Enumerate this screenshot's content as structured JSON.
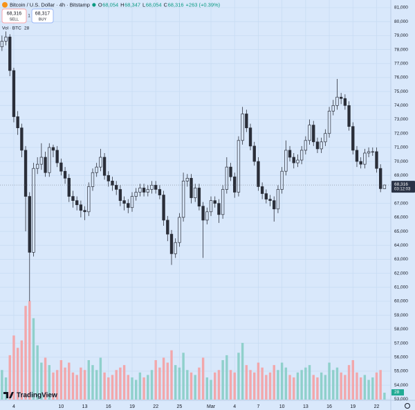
{
  "header": {
    "symbol": "Bitcoin / U.S. Dollar · 4h · Bitstamp",
    "ohlc": [
      {
        "key": "O",
        "value": "68,054"
      },
      {
        "key": "H",
        "value": "68,347"
      },
      {
        "key": "L",
        "value": "68,054"
      },
      {
        "key": "C",
        "value": "68,316"
      }
    ],
    "change": "+263 (+0.39%)",
    "sell_price": "68,316",
    "sell_label": "SELL",
    "spread": "1",
    "buy_price": "68,317",
    "buy_label": "BUY",
    "volume_label": "Vol · BTC",
    "logo": "TradingView"
  },
  "chart_data": {
    "type": "candlestick",
    "background": "#d9e8fb",
    "grid": true,
    "grid_color": "#c8dcf3",
    "candle_color": "#2a2e39",
    "volume_up_color": "#8fd0cb",
    "volume_down_color": "#f2a7ab",
    "last_price_label": "68,316",
    "countdown": "03:12:03",
    "xlim": [
      1.25,
      50.8
    ],
    "xticks": [
      {
        "value": 3,
        "label": "4"
      },
      {
        "value": 9,
        "label": "10"
      },
      {
        "value": 12,
        "label": "13"
      },
      {
        "value": 15,
        "label": "16"
      },
      {
        "value": 18,
        "label": "19"
      },
      {
        "value": 21,
        "label": "22"
      },
      {
        "value": 24,
        "label": "25"
      },
      {
        "value": 28,
        "label": "Mar"
      },
      {
        "value": 31,
        "label": "4"
      },
      {
        "value": 34,
        "label": "7"
      },
      {
        "value": 37,
        "label": "10"
      },
      {
        "value": 40,
        "label": "13"
      },
      {
        "value": 43,
        "label": "16"
      },
      {
        "value": 46,
        "label": "19"
      },
      {
        "value": 49,
        "label": "22"
      }
    ],
    "ylim": [
      52967,
      81545
    ],
    "yticks": [
      {
        "value": 53000,
        "label": "53,000"
      },
      {
        "value": 54000,
        "label": "54,000"
      },
      {
        "value": 55000,
        "label": "55,000"
      },
      {
        "value": 56000,
        "label": "56,000"
      },
      {
        "value": 57000,
        "label": "57,000"
      },
      {
        "value": 58000,
        "label": "58,000"
      },
      {
        "value": 59000,
        "label": "59,000"
      },
      {
        "value": 60000,
        "label": "60,000"
      },
      {
        "value": 61000,
        "label": "61,000"
      },
      {
        "value": 62000,
        "label": "62,000"
      },
      {
        "value": 63000,
        "label": "63,000"
      },
      {
        "value": 64000,
        "label": "64,000"
      },
      {
        "value": 65000,
        "label": "65,000"
      },
      {
        "value": 66000,
        "label": "66,000"
      },
      {
        "value": 67000,
        "label": "67,000"
      },
      {
        "value": 69000,
        "label": "69,000"
      },
      {
        "value": 70000,
        "label": "70,000"
      },
      {
        "value": 71000,
        "label": "71,000"
      },
      {
        "value": 72000,
        "label": "72,000"
      },
      {
        "value": 73000,
        "label": "73,000"
      },
      {
        "value": 74000,
        "label": "74,000"
      },
      {
        "value": 75000,
        "label": "75,000"
      },
      {
        "value": 76000,
        "label": "76,000"
      },
      {
        "value": 77000,
        "label": "77,000"
      },
      {
        "value": 78000,
        "label": "78,000"
      },
      {
        "value": 79000,
        "label": "79,000"
      },
      {
        "value": 80000,
        "label": "80,000"
      },
      {
        "value": 81000,
        "label": "81,000"
      }
    ],
    "y2lim": [
      0,
      1620
    ],
    "x": [
      1.5,
      2,
      2.5,
      3,
      3.5,
      4,
      4.5,
      5,
      5.5,
      6,
      6.5,
      7,
      7.5,
      8,
      8.5,
      9,
      9.5,
      10,
      10.5,
      11,
      11.5,
      12,
      12.5,
      13,
      13.5,
      14,
      14.5,
      15,
      15.5,
      16,
      16.5,
      17,
      17.5,
      18,
      18.5,
      19,
      19.5,
      20,
      20.5,
      21,
      21.5,
      22,
      22.5,
      23,
      23.5,
      24,
      24.5,
      25,
      25.5,
      26,
      26.5,
      27,
      27.5,
      28,
      28.5,
      29,
      29.5,
      30,
      30.5,
      31,
      31.5,
      32,
      32.5,
      33,
      33.5,
      34,
      34.5,
      35,
      35.5,
      36,
      36.5,
      37,
      37.5,
      38,
      38.5,
      39,
      39.5,
      40,
      40.5,
      41,
      41.5,
      42,
      42.5,
      43,
      43.5,
      44,
      44.5,
      45,
      45.5,
      46,
      46.5,
      47,
      47.5,
      48,
      48.5,
      49,
      49.5,
      50
    ],
    "open": [
      78200,
      78600,
      78900,
      76500,
      73200,
      72400,
      70800,
      67500,
      63500,
      69500,
      69800,
      70300,
      69200,
      71000,
      70800,
      69900,
      69300,
      68800,
      67500,
      67200,
      66900,
      66500,
      66400,
      68200,
      69200,
      69600,
      70300,
      69000,
      68600,
      68300,
      68000,
      67200,
      67000,
      66700,
      67500,
      67800,
      68100,
      67800,
      68000,
      68300,
      68000,
      67600,
      65800,
      64800,
      63400,
      64200,
      66000,
      68600,
      68800,
      67400,
      68100,
      66800,
      65800,
      66400,
      67200,
      67000,
      66200,
      68000,
      69600,
      68900,
      67800,
      71500,
      73400,
      72400,
      71100,
      70000,
      68200,
      67700,
      67300,
      67200,
      66600,
      68000,
      69300,
      70800,
      70300,
      69900,
      70100,
      70800,
      71500,
      72600,
      71400,
      70900,
      71400,
      72000,
      73600,
      74000,
      74600,
      74500,
      74000,
      72500,
      70800,
      70000,
      69800,
      70600,
      70700,
      70700,
      69500,
      68054
    ],
    "high": [
      79000,
      79300,
      79100,
      76700,
      73600,
      72700,
      71100,
      67800,
      69900,
      70300,
      71300,
      70700,
      71300,
      71200,
      71100,
      70200,
      69600,
      69100,
      67900,
      67500,
      67200,
      66800,
      68500,
      69500,
      69900,
      70900,
      70600,
      69300,
      68900,
      68600,
      68300,
      67500,
      67300,
      67800,
      68100,
      68400,
      68400,
      68300,
      68600,
      68600,
      68300,
      67900,
      66100,
      65100,
      64500,
      66300,
      69200,
      69100,
      69100,
      68400,
      68400,
      67100,
      66700,
      67500,
      67500,
      67300,
      68300,
      70300,
      69900,
      69200,
      71800,
      73900,
      73700,
      72700,
      71400,
      70300,
      68500,
      68000,
      67600,
      67500,
      68300,
      69600,
      71500,
      71100,
      70600,
      70500,
      71100,
      71800,
      73000,
      72900,
      71700,
      71700,
      72300,
      73900,
      74400,
      75900,
      74900,
      74800,
      74300,
      72800,
      71100,
      70300,
      70900,
      71000,
      71000,
      71000,
      69800,
      68347
    ],
    "low": [
      77900,
      78300,
      76100,
      72800,
      71900,
      70300,
      65000,
      60000,
      63200,
      69100,
      69400,
      68900,
      68900,
      70300,
      69600,
      69000,
      68400,
      67100,
      66700,
      66500,
      66000,
      65800,
      66100,
      67900,
      68900,
      69300,
      68700,
      68200,
      67900,
      67600,
      66800,
      66500,
      66300,
      66400,
      67200,
      67500,
      67500,
      67500,
      67700,
      67700,
      67300,
      65400,
      64300,
      62600,
      63100,
      63900,
      65700,
      68200,
      67000,
      67100,
      66500,
      63100,
      65500,
      66100,
      66700,
      65600,
      65900,
      67700,
      68600,
      67400,
      67500,
      71200,
      72100,
      70800,
      69700,
      67900,
      67300,
      67000,
      66800,
      65700,
      66300,
      67700,
      69000,
      70000,
      69500,
      69600,
      69800,
      70500,
      71200,
      71100,
      70600,
      70600,
      71100,
      71700,
      73300,
      73700,
      74100,
      73700,
      72200,
      70500,
      69600,
      69500,
      69500,
      70300,
      70400,
      69200,
      67800,
      68054
    ],
    "close": [
      78600,
      78900,
      76500,
      73200,
      72400,
      70800,
      67500,
      63500,
      69500,
      69800,
      70300,
      69200,
      71000,
      70800,
      69900,
      69300,
      68800,
      67500,
      67200,
      66900,
      66500,
      66400,
      68200,
      69200,
      69600,
      70300,
      69000,
      68600,
      68300,
      68000,
      67200,
      67000,
      66700,
      67500,
      67800,
      68100,
      67800,
      68000,
      68300,
      68000,
      67600,
      65800,
      64800,
      63400,
      64200,
      66000,
      68600,
      68800,
      67400,
      68100,
      66800,
      65800,
      66400,
      67200,
      67000,
      66200,
      68000,
      69600,
      68900,
      67800,
      71500,
      73400,
      72400,
      71100,
      70000,
      68200,
      67700,
      67300,
      67200,
      66600,
      68000,
      69300,
      70800,
      70300,
      69900,
      70100,
      70800,
      71500,
      72600,
      71400,
      70900,
      71400,
      72000,
      73600,
      74000,
      74600,
      74500,
      74000,
      72500,
      70800,
      70000,
      69800,
      70600,
      70700,
      70700,
      69500,
      68054,
      68316
    ],
    "volume": [
      120,
      90,
      180,
      260,
      210,
      240,
      380,
      400,
      330,
      220,
      150,
      170,
      140,
      110,
      120,
      160,
      130,
      150,
      110,
      100,
      130,
      120,
      160,
      140,
      120,
      170,
      110,
      90,
      100,
      120,
      130,
      140,
      100,
      90,
      80,
      110,
      90,
      100,
      120,
      160,
      130,
      170,
      150,
      200,
      140,
      130,
      190,
      120,
      110,
      100,
      130,
      170,
      90,
      80,
      110,
      120,
      160,
      180,
      120,
      110,
      190,
      230,
      140,
      120,
      110,
      150,
      130,
      100,
      110,
      140,
      120,
      150,
      130,
      100,
      90,
      110,
      120,
      130,
      140,
      100,
      90,
      110,
      100,
      150,
      120,
      130,
      110,
      100,
      140,
      160,
      110,
      90,
      100,
      80,
      90,
      110,
      120,
      28
    ]
  }
}
